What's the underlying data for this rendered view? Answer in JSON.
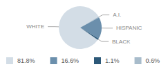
{
  "chart_data": {
    "type": "pie",
    "categories": [
      "WHITE",
      "A.I.",
      "HISPANIC",
      "BLACK"
    ],
    "values": [
      81.8,
      0.6,
      16.6,
      1.1
    ],
    "value_labels": [
      "81.8%",
      "0.6%",
      "16.6%",
      "1.1%"
    ],
    "colors": [
      "#d3dde6",
      "#a8bccb",
      "#6b8fac",
      "#2c5878"
    ],
    "legend": "bottom"
  }
}
